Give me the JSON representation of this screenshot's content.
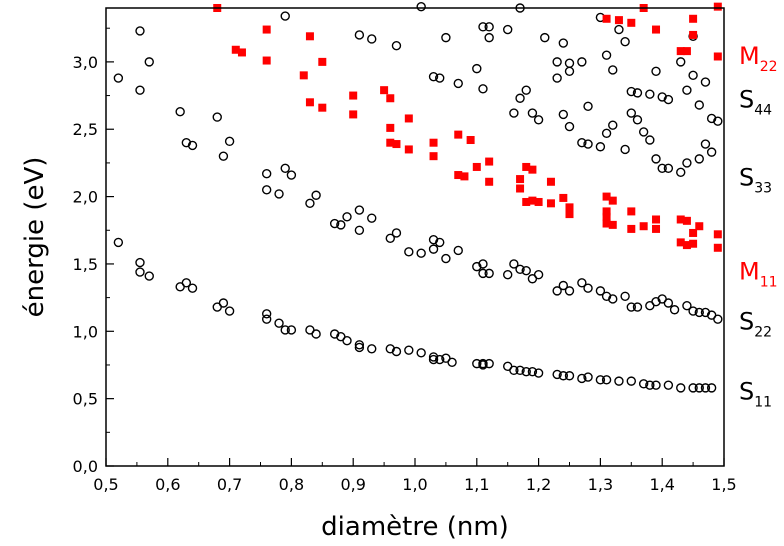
{
  "chart_data": {
    "type": "scatter",
    "xlabel": "diamètre (nm)",
    "ylabel": "énergie (eV)",
    "xlim": [
      0.5,
      1.5
    ],
    "ylim": [
      0.0,
      3.4
    ],
    "x_ticks": [
      "0,5",
      "0,6",
      "0,7",
      "0,8",
      "0,9",
      "1,0",
      "1,1",
      "1,2",
      "1,3",
      "1,4",
      "1,5"
    ],
    "y_ticks": [
      "0,0",
      "0,5",
      "1,0",
      "1,5",
      "2,0",
      "2,5",
      "3,0"
    ],
    "grid": false,
    "band_labels": [
      {
        "main": "M",
        "sub": "22",
        "y": 3.05,
        "color": "#ff0000"
      },
      {
        "main": "S",
        "sub": "44",
        "y": 2.73,
        "color": "#000000"
      },
      {
        "main": "S",
        "sub": "33",
        "y": 2.15,
        "color": "#000000"
      },
      {
        "main": "M",
        "sub": "11",
        "y": 1.45,
        "color": "#ff0000"
      },
      {
        "main": "S",
        "sub": "22",
        "y": 1.08,
        "color": "#000000"
      },
      {
        "main": "S",
        "sub": "11",
        "y": 0.56,
        "color": "#000000"
      }
    ],
    "series": [
      {
        "marker": "open-circle",
        "color": "#000000",
        "points": [
          [
            0.52,
            1.66
          ],
          [
            0.555,
            1.51
          ],
          [
            0.555,
            1.44
          ],
          [
            0.57,
            1.41
          ],
          [
            0.62,
            1.33
          ],
          [
            0.63,
            1.36
          ],
          [
            0.64,
            1.32
          ],
          [
            0.68,
            1.18
          ],
          [
            0.69,
            1.21
          ],
          [
            0.7,
            1.15
          ],
          [
            0.76,
            1.13
          ],
          [
            0.76,
            1.09
          ],
          [
            0.78,
            1.06
          ],
          [
            0.79,
            1.01
          ],
          [
            0.8,
            1.01
          ],
          [
            0.83,
            1.01
          ],
          [
            0.84,
            0.98
          ],
          [
            0.87,
            0.98
          ],
          [
            0.88,
            0.96
          ],
          [
            0.89,
            0.93
          ],
          [
            0.91,
            0.9
          ],
          [
            0.91,
            0.88
          ],
          [
            0.93,
            0.87
          ],
          [
            0.96,
            0.87
          ],
          [
            0.97,
            0.85
          ],
          [
            0.99,
            0.86
          ],
          [
            1.01,
            0.84
          ],
          [
            1.03,
            0.81
          ],
          [
            1.03,
            0.79
          ],
          [
            1.04,
            0.79
          ],
          [
            1.05,
            0.8
          ],
          [
            1.06,
            0.77
          ],
          [
            1.1,
            0.76
          ],
          [
            1.11,
            0.75
          ],
          [
            1.11,
            0.76
          ],
          [
            1.12,
            0.76
          ],
          [
            1.15,
            0.74
          ],
          [
            1.16,
            0.71
          ],
          [
            1.17,
            0.71
          ],
          [
            1.18,
            0.7
          ],
          [
            1.19,
            0.7
          ],
          [
            1.2,
            0.69
          ],
          [
            1.23,
            0.68
          ],
          [
            1.24,
            0.67
          ],
          [
            1.25,
            0.67
          ],
          [
            1.27,
            0.65
          ],
          [
            1.28,
            0.66
          ],
          [
            1.3,
            0.64
          ],
          [
            1.31,
            0.64
          ],
          [
            1.33,
            0.63
          ],
          [
            1.35,
            0.63
          ],
          [
            1.37,
            0.61
          ],
          [
            1.38,
            0.6
          ],
          [
            1.39,
            0.6
          ],
          [
            1.41,
            0.6
          ],
          [
            1.43,
            0.58
          ],
          [
            1.45,
            0.58
          ],
          [
            1.46,
            0.58
          ],
          [
            1.47,
            0.58
          ],
          [
            1.48,
            0.58
          ],
          [
            0.62,
            2.63
          ],
          [
            0.63,
            2.4
          ],
          [
            0.64,
            2.38
          ],
          [
            0.68,
            2.59
          ],
          [
            0.69,
            2.3
          ],
          [
            0.7,
            2.41
          ],
          [
            0.76,
            2.17
          ],
          [
            0.76,
            2.05
          ],
          [
            0.78,
            2.02
          ],
          [
            0.79,
            2.21
          ],
          [
            0.8,
            2.16
          ],
          [
            0.83,
            1.95
          ],
          [
            0.84,
            2.01
          ],
          [
            0.87,
            1.8
          ],
          [
            0.88,
            1.79
          ],
          [
            0.89,
            1.85
          ],
          [
            0.91,
            1.9
          ],
          [
            0.91,
            1.75
          ],
          [
            0.93,
            1.84
          ],
          [
            0.96,
            1.69
          ],
          [
            0.97,
            1.73
          ],
          [
            0.99,
            1.59
          ],
          [
            1.01,
            1.58
          ],
          [
            1.03,
            1.68
          ],
          [
            1.03,
            1.61
          ],
          [
            1.04,
            1.66
          ],
          [
            1.05,
            1.54
          ],
          [
            1.07,
            1.6
          ],
          [
            1.1,
            1.48
          ],
          [
            1.11,
            1.5
          ],
          [
            1.11,
            1.43
          ],
          [
            1.12,
            1.43
          ],
          [
            1.15,
            1.42
          ],
          [
            1.16,
            1.5
          ],
          [
            1.17,
            1.46
          ],
          [
            1.18,
            1.45
          ],
          [
            1.19,
            1.39
          ],
          [
            1.2,
            1.42
          ],
          [
            1.23,
            1.3
          ],
          [
            1.24,
            1.34
          ],
          [
            1.25,
            1.3
          ],
          [
            1.27,
            1.36
          ],
          [
            1.28,
            1.32
          ],
          [
            1.3,
            1.3
          ],
          [
            1.31,
            1.26
          ],
          [
            1.32,
            1.24
          ],
          [
            1.34,
            1.26
          ],
          [
            1.35,
            1.18
          ],
          [
            1.36,
            1.18
          ],
          [
            1.38,
            1.19
          ],
          [
            1.39,
            1.22
          ],
          [
            1.4,
            1.24
          ],
          [
            1.41,
            1.21
          ],
          [
            1.42,
            1.16
          ],
          [
            1.44,
            1.19
          ],
          [
            1.45,
            1.15
          ],
          [
            1.46,
            1.14
          ],
          [
            1.47,
            1.14
          ],
          [
            1.48,
            1.12
          ],
          [
            1.49,
            1.09
          ],
          [
            0.52,
            2.88
          ],
          [
            0.555,
            3.23
          ],
          [
            0.555,
            2.79
          ],
          [
            0.57,
            3.0
          ],
          [
            0.79,
            3.34
          ],
          [
            0.91,
            3.2
          ],
          [
            0.93,
            3.17
          ],
          [
            0.97,
            3.12
          ],
          [
            1.01,
            3.41
          ],
          [
            1.03,
            2.89
          ],
          [
            1.04,
            2.88
          ],
          [
            1.05,
            3.18
          ],
          [
            1.07,
            2.84
          ],
          [
            1.1,
            2.95
          ],
          [
            1.11,
            3.26
          ],
          [
            1.11,
            2.8
          ],
          [
            1.12,
            3.18
          ],
          [
            1.12,
            3.26
          ],
          [
            1.15,
            3.24
          ],
          [
            1.16,
            2.62
          ],
          [
            1.17,
            3.4
          ],
          [
            1.17,
            2.73
          ],
          [
            1.18,
            2.79
          ],
          [
            1.19,
            2.62
          ],
          [
            1.2,
            2.57
          ],
          [
            1.21,
            3.18
          ],
          [
            1.23,
            3.0
          ],
          [
            1.23,
            2.88
          ],
          [
            1.24,
            3.14
          ],
          [
            1.24,
            2.61
          ],
          [
            1.25,
            2.99
          ],
          [
            1.25,
            2.93
          ],
          [
            1.25,
            2.52
          ],
          [
            1.27,
            3.0
          ],
          [
            1.27,
            2.4
          ],
          [
            1.28,
            2.67
          ],
          [
            1.28,
            2.39
          ],
          [
            1.3,
            3.33
          ],
          [
            1.3,
            2.37
          ],
          [
            1.31,
            3.05
          ],
          [
            1.31,
            2.47
          ],
          [
            1.32,
            2.94
          ],
          [
            1.32,
            2.53
          ],
          [
            1.33,
            3.24
          ],
          [
            1.34,
            2.35
          ],
          [
            1.34,
            3.15
          ],
          [
            1.35,
            2.78
          ],
          [
            1.35,
            2.62
          ],
          [
            1.36,
            2.77
          ],
          [
            1.36,
            2.57
          ],
          [
            1.37,
            2.48
          ],
          [
            1.38,
            2.42
          ],
          [
            1.38,
            2.76
          ],
          [
            1.39,
            2.93
          ],
          [
            1.39,
            2.28
          ],
          [
            1.4,
            2.21
          ],
          [
            1.4,
            2.74
          ],
          [
            1.41,
            2.21
          ],
          [
            1.41,
            2.72
          ],
          [
            1.43,
            3.0
          ],
          [
            1.43,
            2.18
          ],
          [
            1.44,
            2.79
          ],
          [
            1.44,
            2.25
          ],
          [
            1.45,
            2.9
          ],
          [
            1.45,
            3.19
          ],
          [
            1.46,
            2.28
          ],
          [
            1.46,
            2.68
          ],
          [
            1.47,
            2.39
          ],
          [
            1.47,
            2.85
          ],
          [
            1.48,
            2.58
          ],
          [
            1.48,
            2.33
          ],
          [
            1.49,
            2.56
          ]
        ]
      },
      {
        "marker": "filled-square",
        "color": "#ff0000",
        "points": [
          [
            0.68,
            3.4
          ],
          [
            0.71,
            3.09
          ],
          [
            0.72,
            3.07
          ],
          [
            0.76,
            3.24
          ],
          [
            0.76,
            3.01
          ],
          [
            0.82,
            2.9
          ],
          [
            0.83,
            3.19
          ],
          [
            0.83,
            2.7
          ],
          [
            0.85,
            3.0
          ],
          [
            0.85,
            2.66
          ],
          [
            0.9,
            2.75
          ],
          [
            0.9,
            2.61
          ],
          [
            0.95,
            2.79
          ],
          [
            0.96,
            2.4
          ],
          [
            0.96,
            2.73
          ],
          [
            0.96,
            2.51
          ],
          [
            0.97,
            2.39
          ],
          [
            0.99,
            2.58
          ],
          [
            0.99,
            2.35
          ],
          [
            1.03,
            2.4
          ],
          [
            1.03,
            2.3
          ],
          [
            1.07,
            2.46
          ],
          [
            1.07,
            2.16
          ],
          [
            1.08,
            2.15
          ],
          [
            1.09,
            2.42
          ],
          [
            1.1,
            2.22
          ],
          [
            1.12,
            2.11
          ],
          [
            1.12,
            2.26
          ],
          [
            1.17,
            2.13
          ],
          [
            1.17,
            2.06
          ],
          [
            1.18,
            2.22
          ],
          [
            1.18,
            1.96
          ],
          [
            1.19,
            1.97
          ],
          [
            1.19,
            2.2
          ],
          [
            1.2,
            1.96
          ],
          [
            1.22,
            2.11
          ],
          [
            1.22,
            1.95
          ],
          [
            1.24,
            1.99
          ],
          [
            1.25,
            1.92
          ],
          [
            1.25,
            1.87
          ],
          [
            1.31,
            2.0
          ],
          [
            1.31,
            1.85
          ],
          [
            1.31,
            1.8
          ],
          [
            1.31,
            1.89
          ],
          [
            1.31,
            3.32
          ],
          [
            1.32,
            1.79
          ],
          [
            1.32,
            1.97
          ],
          [
            1.33,
            3.31
          ],
          [
            1.35,
            1.89
          ],
          [
            1.35,
            1.76
          ],
          [
            1.35,
            3.29
          ],
          [
            1.37,
            1.78
          ],
          [
            1.37,
            3.4
          ],
          [
            1.39,
            1.83
          ],
          [
            1.39,
            1.76
          ],
          [
            1.39,
            3.24
          ],
          [
            1.43,
            1.83
          ],
          [
            1.43,
            1.66
          ],
          [
            1.43,
            3.08
          ],
          [
            1.44,
            1.82
          ],
          [
            1.44,
            1.64
          ],
          [
            1.44,
            3.08
          ],
          [
            1.45,
            1.65
          ],
          [
            1.45,
            1.73
          ],
          [
            1.45,
            3.32
          ],
          [
            1.45,
            3.2
          ],
          [
            1.46,
            1.78
          ],
          [
            1.49,
            1.72
          ],
          [
            1.49,
            1.62
          ],
          [
            1.49,
            3.04
          ],
          [
            1.49,
            3.41
          ]
        ]
      }
    ]
  }
}
